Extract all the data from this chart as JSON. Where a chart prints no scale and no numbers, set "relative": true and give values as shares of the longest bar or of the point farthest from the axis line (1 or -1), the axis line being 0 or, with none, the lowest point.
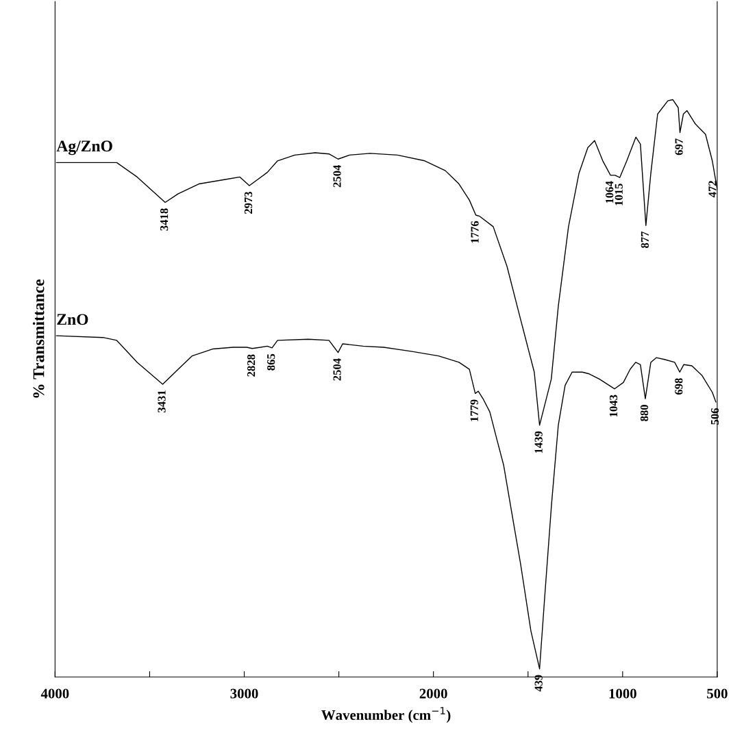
{
  "chart_data": {
    "type": "line",
    "relative": true,
    "xlabel": "Wavenumber (cm$^{−1}$)",
    "ylabel": "% Transmittance",
    "xlim": [
      4000,
      500
    ],
    "xticks": [
      4000,
      {
        "value": 3500,
        "label": null
      },
      3000,
      {
        "value": 2500,
        "label": null
      },
      2000,
      {
        "value": 1500,
        "label": null
      },
      1000,
      500
    ],
    "series": [
      {
        "name": "Ag/ZnO",
        "color": "#000000",
        "x": [
          3993,
          3674,
          3566,
          3418,
          3349,
          3240,
          3095,
          3023,
          2973,
          2878,
          2824,
          2733,
          2625,
          2552,
          2504,
          2444,
          2335,
          2190,
          2046,
          1937,
          1865,
          1810,
          1776,
          1756,
          1684,
          1611,
          1539,
          1467,
          1439,
          1377,
          1340,
          1286,
          1231,
          1184,
          1148,
          1105,
          1064,
          1040,
          1015,
          978,
          930,
          906,
          877,
          851,
          815,
          761,
          735,
          706,
          697,
          679,
          660,
          616,
          562,
          526,
          500
        ],
        "values": [
          0.891,
          0.891,
          0.866,
          0.822,
          0.837,
          0.854,
          0.862,
          0.866,
          0.851,
          0.874,
          0.894,
          0.904,
          0.908,
          0.906,
          0.897,
          0.904,
          0.907,
          0.904,
          0.894,
          0.877,
          0.854,
          0.826,
          0.8,
          0.798,
          0.78,
          0.711,
          0.619,
          0.528,
          0.436,
          0.516,
          0.642,
          0.78,
          0.872,
          0.917,
          0.929,
          0.894,
          0.869,
          0.869,
          0.865,
          0.894,
          0.935,
          0.923,
          0.782,
          0.872,
          0.975,
          0.998,
          1.0,
          0.986,
          0.943,
          0.975,
          0.981,
          0.958,
          0.94,
          0.894,
          0.845
        ]
      },
      {
        "name": "ZnO",
        "color": "#000000",
        "x": [
          3993,
          3747,
          3674,
          3566,
          3431,
          3349,
          3276,
          3168,
          3059,
          2987,
          2958,
          2914,
          2878,
          2853,
          2824,
          2661,
          2552,
          2504,
          2480,
          2371,
          2263,
          2118,
          1973,
          1865,
          1810,
          1779,
          1763,
          1738,
          1702,
          1666,
          1629,
          1593,
          1539,
          1485,
          1439,
          1412,
          1376,
          1340,
          1304,
          1267,
          1213,
          1177,
          1123,
          1043,
          996,
          960,
          931,
          906,
          880,
          851,
          822,
          779,
          725,
          698,
          677,
          634,
          580,
          526,
          507
        ],
        "values": [
          0.591,
          0.588,
          0.583,
          0.545,
          0.507,
          0.533,
          0.556,
          0.568,
          0.571,
          0.571,
          0.569,
          0.571,
          0.573,
          0.57,
          0.583,
          0.585,
          0.583,
          0.562,
          0.577,
          0.573,
          0.571,
          0.564,
          0.556,
          0.545,
          0.533,
          0.491,
          0.495,
          0.482,
          0.459,
          0.413,
          0.367,
          0.298,
          0.195,
          0.08,
          0.014,
          0.138,
          0.298,
          0.436,
          0.505,
          0.528,
          0.528,
          0.525,
          0.516,
          0.499,
          0.51,
          0.533,
          0.545,
          0.541,
          0.482,
          0.545,
          0.553,
          0.55,
          0.545,
          0.528,
          0.541,
          0.539,
          0.522,
          0.493,
          0.476
        ]
      }
    ],
    "annotations": [
      {
        "text": "3418",
        "x": 3418,
        "y": 0.822
      },
      {
        "text": "2973",
        "x": 2973,
        "y": 0.851
      },
      {
        "text": "2504",
        "x": 2504,
        "y": 0.897
      },
      {
        "text": "1776",
        "x": 1776,
        "y": 0.8
      },
      {
        "text": "1439",
        "x": 1439,
        "y": 0.436
      },
      {
        "text": "1064",
        "x": 1064,
        "y": 0.869
      },
      {
        "text": "1015",
        "x": 1015,
        "y": 0.865
      },
      {
        "text": "877",
        "x": 877,
        "y": 0.782
      },
      {
        "text": "697",
        "x": 697,
        "y": 0.943
      },
      {
        "text": "472",
        "x": 520,
        "y": 0.87
      },
      {
        "text": "3431",
        "x": 3431,
        "y": 0.507
      },
      {
        "text": "2828",
        "x": 2958,
        "y": 0.569
      },
      {
        "text": "865",
        "x": 2853,
        "y": 0.57
      },
      {
        "text": "2504",
        "x": 2504,
        "y": 0.562
      },
      {
        "text": "1779",
        "x": 1779,
        "y": 0.491
      },
      {
        "text": "439",
        "x": 1439,
        "y": 0.014
      },
      {
        "text": "1043",
        "x": 1043,
        "y": 0.499
      },
      {
        "text": "880",
        "x": 880,
        "y": 0.482
      },
      {
        "text": "698",
        "x": 698,
        "y": 0.528
      },
      {
        "text": "506",
        "x": 507,
        "y": 0.476
      }
    ]
  }
}
